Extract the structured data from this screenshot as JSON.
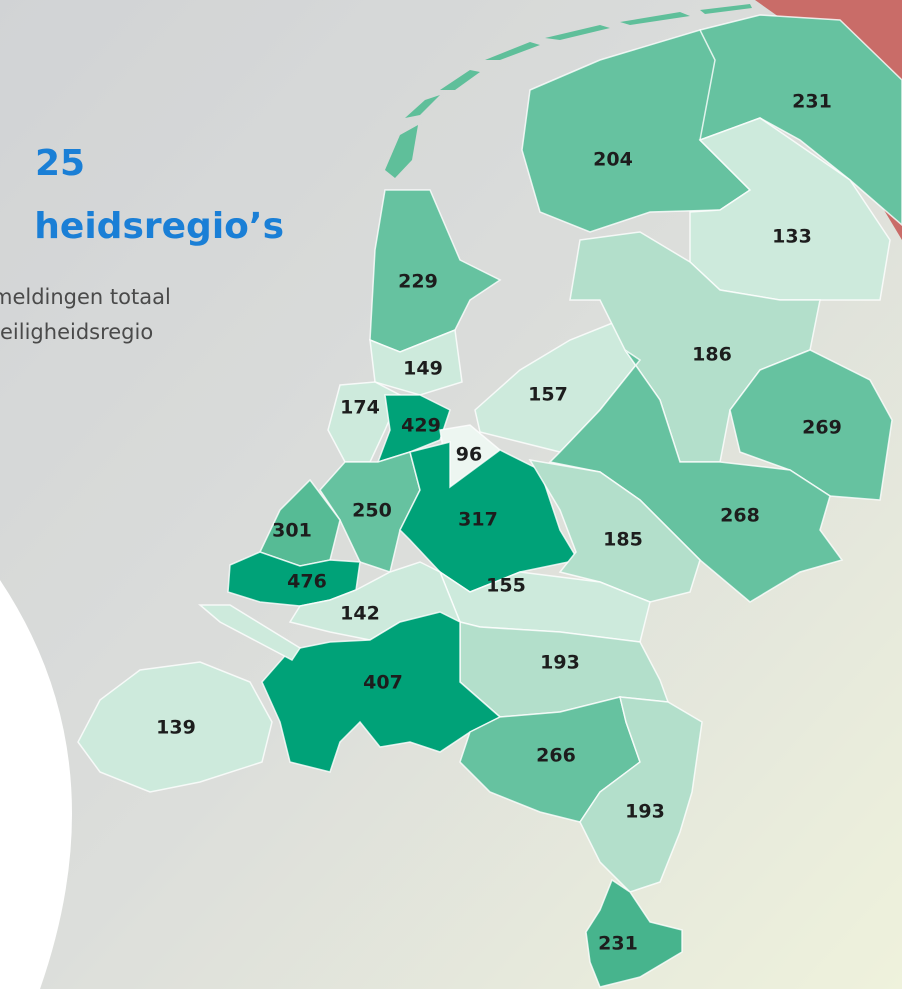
{
  "header": {
    "count": "25",
    "title": "heidsregio’s",
    "subtitle_lines": [
      "meldingen totaal",
      "eiligheidsregio"
    ]
  },
  "map": {
    "regions": [
      {
        "value": 231,
        "color": "#66c2a0"
      },
      {
        "value": 204,
        "color": "#66c2a0"
      },
      {
        "value": 133,
        "color": "#cdeadc"
      },
      {
        "value": 229,
        "color": "#66c2a0"
      },
      {
        "value": 149,
        "color": "#cdeadc"
      },
      {
        "value": 174,
        "color": "#cdeadc"
      },
      {
        "value": 429,
        "color": "#00a278"
      },
      {
        "value": 96,
        "color": "#edf6f1"
      },
      {
        "value": 157,
        "color": "#cdeadc"
      },
      {
        "value": 186,
        "color": "#b3dfcb"
      },
      {
        "value": 269,
        "color": "#66c2a0"
      },
      {
        "value": 268,
        "color": "#66c2a0"
      },
      {
        "value": 250,
        "color": "#66c2a0"
      },
      {
        "value": 301,
        "color": "#56bb95"
      },
      {
        "value": 317,
        "color": "#00a278"
      },
      {
        "value": 185,
        "color": "#b3dfcb"
      },
      {
        "value": 476,
        "color": "#00a278"
      },
      {
        "value": 155,
        "color": "#cdeadc"
      },
      {
        "value": 142,
        "color": "#cdeadc"
      },
      {
        "value": 193,
        "color": "#b3dfcb"
      },
      {
        "value": 407,
        "color": "#00a278"
      },
      {
        "value": 139,
        "color": "#cdeadc"
      },
      {
        "value": 266,
        "color": "#66c2a0"
      },
      {
        "value": 193,
        "color": "#b3dfcb"
      },
      {
        "value": 231,
        "color": "#47b48d"
      }
    ]
  }
}
